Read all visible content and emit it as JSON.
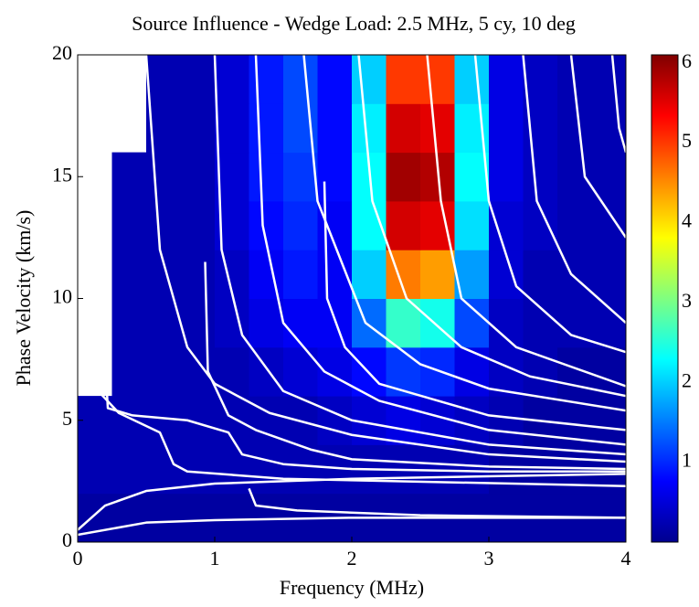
{
  "chart_data": {
    "type": "heatmap",
    "title": "Source Influence - Wedge Load: 2.5 MHz, 5 cy, 10 deg",
    "x_label": "Frequency (MHz)",
    "y_label": "Phase Velocity (km/s)",
    "xlim": [
      0,
      4
    ],
    "ylim": [
      0,
      20
    ],
    "xticks": [
      0,
      1,
      2,
      3,
      4
    ],
    "yticks": [
      0,
      5,
      10,
      15,
      20
    ],
    "colormap": "jet",
    "clim": [
      0,
      6.1
    ],
    "cticks": [
      1,
      2,
      3,
      4,
      5,
      6
    ],
    "xbins": [
      0,
      0.25,
      0.5,
      0.75,
      1,
      1.25,
      1.5,
      1.75,
      2,
      2.25,
      2.5,
      2.75,
      3,
      3.25,
      3.5,
      3.75,
      4
    ],
    "ybins": [
      0,
      2,
      4,
      6,
      8,
      10,
      12,
      14,
      16,
      18,
      20
    ],
    "z": [
      [
        0.2,
        0.2,
        0.2,
        0.2,
        0.2,
        0.2,
        0.2,
        0.2,
        0.2,
        0.2,
        0.2,
        0.2,
        0.2,
        0.2,
        0.2,
        0.2
      ],
      [
        0.3,
        0.3,
        0.3,
        0.3,
        0.3,
        0.3,
        0.3,
        0.3,
        0.3,
        0.3,
        0.3,
        0.3,
        0.2,
        0.2,
        0.2,
        0.2
      ],
      [
        0.3,
        0.3,
        0.3,
        0.3,
        0.3,
        0.3,
        0.3,
        0.4,
        0.5,
        0.6,
        0.5,
        0.4,
        0.3,
        0.2,
        0.2,
        0.2
      ],
      [
        null,
        0.3,
        0.3,
        0.3,
        0.3,
        0.4,
        0.5,
        0.6,
        0.8,
        1.1,
        1.0,
        0.6,
        0.4,
        0.3,
        0.2,
        0.2
      ],
      [
        null,
        0.3,
        0.3,
        0.3,
        0.4,
        0.6,
        0.7,
        0.7,
        1.4,
        2.6,
        2.4,
        1.2,
        0.4,
        0.3,
        0.3,
        0.3
      ],
      [
        null,
        0.3,
        0.3,
        0.3,
        0.4,
        0.7,
        0.9,
        0.7,
        2.0,
        4.6,
        4.4,
        1.7,
        0.5,
        0.3,
        0.3,
        0.3
      ],
      [
        null,
        0.3,
        0.3,
        0.3,
        0.5,
        0.8,
        1.0,
        0.7,
        2.3,
        5.6,
        5.5,
        2.1,
        0.5,
        0.4,
        0.3,
        0.3
      ],
      [
        null,
        0.3,
        0.3,
        0.3,
        0.5,
        0.9,
        1.1,
        0.8,
        2.3,
        5.9,
        5.8,
        2.3,
        0.6,
        0.4,
        0.3,
        0.3
      ],
      [
        null,
        null,
        0.3,
        0.3,
        0.5,
        0.9,
        1.2,
        0.8,
        2.2,
        5.6,
        5.5,
        2.2,
        0.6,
        0.4,
        0.3,
        0.3
      ],
      [
        null,
        null,
        0.3,
        0.3,
        0.5,
        0.9,
        1.2,
        0.8,
        2.0,
        5.0,
        5.0,
        2.0,
        0.6,
        0.4,
        0.3,
        0.3
      ]
    ],
    "curve_color": "#ffffff",
    "curves": [
      {
        "x": [
          0,
          0.2,
          0.5,
          1,
          1.5,
          2,
          3,
          4
        ],
        "values": [
          0.5,
          1.5,
          2.1,
          2.4,
          2.5,
          2.6,
          2.7,
          2.8
        ]
      },
      {
        "x": [
          0,
          0.5,
          1,
          2,
          4
        ],
        "values": [
          0.3,
          0.8,
          0.9,
          1.0,
          1.0
        ]
      },
      {
        "x": [
          1.25,
          1.3,
          1.6,
          2.5,
          4
        ],
        "values": [
          2.2,
          1.5,
          1.3,
          1.1,
          1.0
        ]
      },
      {
        "x": [
          0.2,
          0.22,
          0.4,
          0.8,
          1.1,
          1.2,
          1.5,
          2,
          3,
          4
        ],
        "values": [
          7.5,
          5.5,
          5.2,
          5,
          4.5,
          3.6,
          3.2,
          3.0,
          2.9,
          2.9
        ]
      },
      {
        "x": [
          0.15,
          0.3,
          0.6,
          0.7,
          0.8,
          1.5,
          4
        ],
        "values": [
          6.2,
          5.3,
          4.5,
          3.2,
          2.9,
          2.6,
          2.3
        ]
      },
      {
        "x": [
          0.93,
          0.95,
          1.1,
          1.3,
          1.7,
          2,
          3,
          4
        ],
        "values": [
          11.5,
          7,
          5.2,
          4.6,
          3.8,
          3.4,
          3.1,
          3.0
        ]
      },
      {
        "x": [
          0.5,
          0.6,
          0.8,
          1,
          1.4,
          2,
          3,
          4
        ],
        "values": [
          20,
          12,
          8,
          6.5,
          5.3,
          4.4,
          3.6,
          3.3
        ]
      },
      {
        "x": [
          1,
          1.05,
          1.2,
          1.5,
          2,
          3,
          4
        ],
        "values": [
          20,
          12,
          8.5,
          6.2,
          5,
          4,
          3.6
        ]
      },
      {
        "x": [
          1.3,
          1.35,
          1.5,
          1.8,
          2.2,
          3,
          4
        ],
        "values": [
          20,
          13,
          9,
          7,
          5.8,
          4.6,
          4
        ]
      },
      {
        "x": [
          1.8,
          1.82,
          1.95,
          2.2,
          3,
          4
        ],
        "values": [
          14.8,
          10,
          8,
          6.5,
          5.2,
          4.6
        ]
      },
      {
        "x": [
          1.65,
          1.75,
          2.1,
          2.5,
          3,
          4
        ],
        "values": [
          20,
          14,
          9,
          7.3,
          6.3,
          5.4
        ]
      },
      {
        "x": [
          2.05,
          2.15,
          2.4,
          2.8,
          3.3,
          4
        ],
        "values": [
          20,
          14,
          10,
          8,
          6.8,
          6
        ]
      },
      {
        "x": [
          2.55,
          2.65,
          2.8,
          3.2,
          4
        ],
        "values": [
          20,
          14,
          10,
          8,
          6.4
        ]
      },
      {
        "x": [
          2.9,
          3.0,
          3.2,
          3.6,
          4
        ],
        "values": [
          20,
          14,
          10.5,
          8.5,
          7.8
        ]
      },
      {
        "x": [
          3.25,
          3.35,
          3.6,
          4
        ],
        "values": [
          20,
          14,
          11,
          9
        ]
      },
      {
        "x": [
          3.6,
          3.7,
          4
        ],
        "values": [
          20,
          15,
          12.5
        ]
      },
      {
        "x": [
          3.9,
          3.95,
          4
        ],
        "values": [
          20,
          17,
          16
        ]
      }
    ]
  }
}
